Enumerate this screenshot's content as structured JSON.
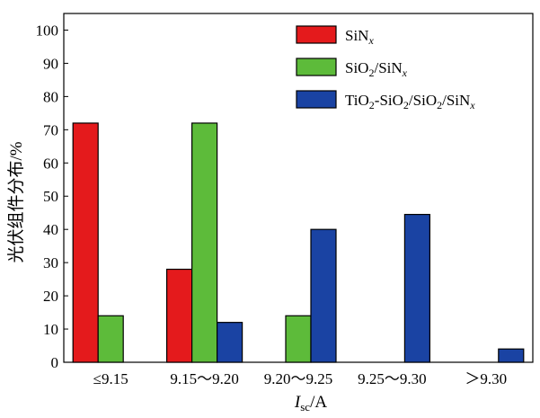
{
  "chart_data": {
    "type": "bar",
    "categories": [
      "≤9.15",
      "9.15～9.20",
      "9.20～9.25",
      "9.25～9.30",
      "＞9.30"
    ],
    "series": [
      {
        "name": "SiNx",
        "legend_html": "SiN<tspan font-style='italic' baseline-shift='sub' font-size='12'>x</tspan>",
        "color": "#e41a1c",
        "values": [
          72,
          28,
          0,
          0,
          0
        ]
      },
      {
        "name": "SiO2/SiNx",
        "color": "#5dbb3a",
        "values": [
          14,
          72,
          14,
          0,
          0
        ]
      },
      {
        "name": "TiO2-SiO2/SiO2/SiNx",
        "color": "#1a43a3",
        "values": [
          0,
          12,
          40,
          44.5,
          4
        ]
      }
    ],
    "ylabel": "光伏组件分布/%",
    "xlabel": "Isc/A",
    "ylim": [
      0,
      105
    ],
    "yticks": [
      0,
      10,
      20,
      30,
      40,
      50,
      60,
      70,
      80,
      90,
      100
    ],
    "legend_position": "top-right",
    "grid": false
  }
}
